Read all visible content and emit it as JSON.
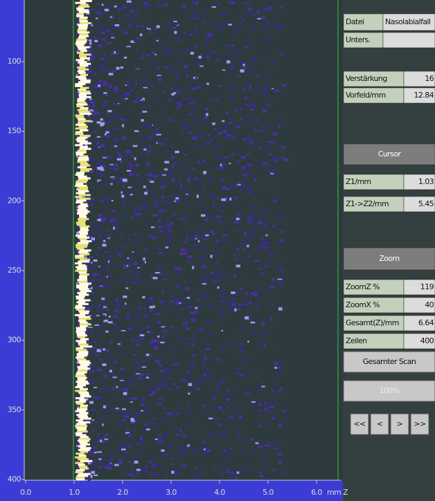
{
  "y_axis": {
    "ticks": [
      100,
      150,
      200,
      250,
      300,
      350,
      400
    ]
  },
  "x_axis": {
    "ticks": [
      "0.0",
      "1.0",
      "2.0",
      "3.0",
      "4.0",
      "5.0",
      "6.0"
    ],
    "unit": "mm Z"
  },
  "panel": {
    "file": {
      "label": "Datei",
      "value": "Nasolabialfall"
    },
    "exam": {
      "label": "Unters."
    },
    "settings": [
      {
        "label": "Verstärkung",
        "value": "16"
      },
      {
        "label": "Vorfeld/mm",
        "value": "12.84"
      }
    ],
    "cursor": {
      "title": "Cursor",
      "rows": [
        {
          "label": "Z1/mm",
          "value": "1.03"
        },
        {
          "label": "Z1->Z2/mm",
          "value": "5.45"
        }
      ]
    },
    "zoom": {
      "title": "Zoom",
      "rows": [
        {
          "label": "ZoomZ %",
          "value": "119"
        },
        {
          "label": "ZoomX %",
          "value": "40"
        },
        {
          "label": "Gesamt(Z)/mm",
          "value": "6.64"
        },
        {
          "label": "Zeilen",
          "value": "400"
        }
      ]
    },
    "buttons": {
      "full_scan": "Gesamter Scan",
      "percent": "100%",
      "nav": [
        "<<",
        "<",
        ">",
        ">>"
      ]
    }
  }
}
